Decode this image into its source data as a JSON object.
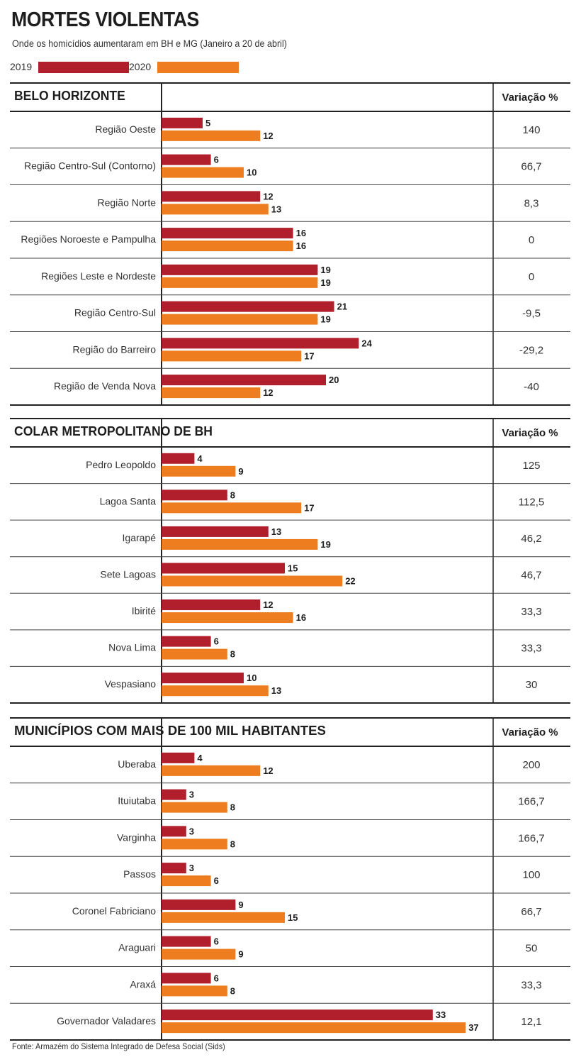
{
  "title": "MORTES VIOLENTAS",
  "subtitle": "Onde os homicídios aumentaram em BH e MG (Janeiro a 20 de abril)",
  "source": "Fonte: Armazém do Sistema Integrado de Defesa Social (Sids)",
  "colors": {
    "y2019": "#b01f2b",
    "y2020": "#ee7d1f",
    "rule": "#222222"
  },
  "legend": [
    {
      "label": "2019",
      "color": "#b01f2b"
    },
    {
      "label": "2020",
      "color": "#ee7d1f"
    }
  ],
  "chart_data": [
    {
      "type": "bar",
      "title": "BELO HORIZONTE",
      "variation_header": "Variação %",
      "series_names": [
        "2019",
        "2020"
      ],
      "categories": [
        "Região Oeste",
        "Região Centro-Sul (Contorno)",
        "Região Norte",
        "Regiões Noroeste e Pampulha",
        "Regiões Leste e Nordeste",
        "Região Centro-Sul",
        "Região do Barreiro",
        "Região de Venda Nova"
      ],
      "series": [
        {
          "name": "2019",
          "values": [
            5,
            6,
            12,
            16,
            19,
            21,
            24,
            20
          ]
        },
        {
          "name": "2020",
          "values": [
            12,
            10,
            13,
            16,
            19,
            19,
            17,
            12
          ]
        }
      ],
      "variation": [
        "140",
        "66,7",
        "8,3",
        "0",
        "0",
        "-9,5",
        "-29,2",
        "-40"
      ]
    },
    {
      "type": "bar",
      "title": "COLAR METROPOLITANO DE BH",
      "variation_header": "Variação %",
      "series_names": [
        "2019",
        "2020"
      ],
      "categories": [
        "Pedro Leopoldo",
        "Lagoa Santa",
        "Igarapé",
        "Sete Lagoas",
        "Ibirité",
        "Nova Lima",
        "Vespasiano"
      ],
      "series": [
        {
          "name": "2019",
          "values": [
            4,
            8,
            13,
            15,
            12,
            6,
            10
          ]
        },
        {
          "name": "2020",
          "values": [
            9,
            17,
            19,
            22,
            16,
            8,
            13
          ]
        }
      ],
      "variation": [
        "125",
        "112,5",
        "46,2",
        "46,7",
        "33,3",
        "33,3",
        "30"
      ]
    },
    {
      "type": "bar",
      "title": "MUNICÍPIOS COM MAIS DE 100 MIL HABITANTES",
      "variation_header": "Variação %",
      "series_names": [
        "2019",
        "2020"
      ],
      "categories": [
        "Uberaba",
        "Ituiutaba",
        "Varginha",
        "Passos",
        "Coronel Fabriciano",
        "Araguari",
        "Araxá",
        "Governador Valadares"
      ],
      "series": [
        {
          "name": "2019",
          "values": [
            4,
            3,
            3,
            3,
            9,
            6,
            6,
            33
          ]
        },
        {
          "name": "2020",
          "values": [
            12,
            8,
            8,
            6,
            15,
            9,
            8,
            37
          ]
        }
      ],
      "variation": [
        "200",
        "166,7",
        "166,7",
        "100",
        "66,7",
        "50",
        "33,3",
        "12,1"
      ]
    }
  ]
}
